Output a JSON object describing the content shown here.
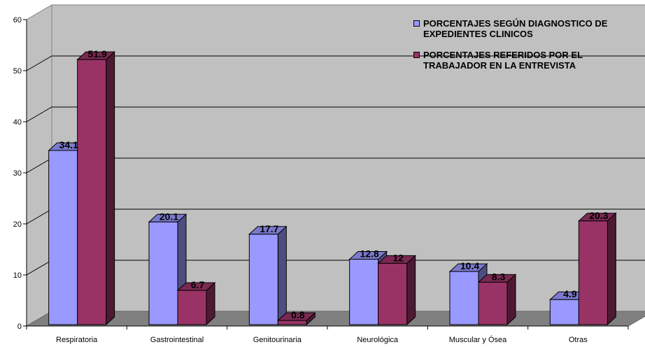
{
  "chart_data": {
    "type": "bar",
    "categories": [
      "Respiratoria",
      "Gastrointestinal",
      "Genitourinaria",
      "Neurológica",
      "Muscular y Ósea",
      "Otras"
    ],
    "series": [
      {
        "name": "PORCENTAJES SEGÚN DIAGNOSTICO DE EXPEDIENTES CLINICOS",
        "values": [
          34.1,
          20.1,
          17.7,
          12.8,
          10.4,
          4.9
        ],
        "labels": [
          "34.1",
          "20.1",
          "17.7",
          "12.8",
          "10.4",
          "4.9"
        ],
        "color": "#9999ff"
      },
      {
        "name": "PORCENTAJES REFERIDOS POR EL TRABAJADOR EN LA ENTREVISTA",
        "values": [
          51.9,
          6.7,
          0.8,
          12,
          8.3,
          20.3
        ],
        "labels": [
          "51.9",
          "6.7",
          "0.8",
          "12",
          "8.3",
          "20.3"
        ],
        "color": "#993366"
      }
    ],
    "ylim": [
      0,
      60
    ],
    "yticks": [
      "0",
      "10",
      "20",
      "30",
      "40",
      "50",
      "60"
    ],
    "grid": true,
    "legend": "top-right",
    "title": "",
    "xlabel": "",
    "ylabel": ""
  }
}
